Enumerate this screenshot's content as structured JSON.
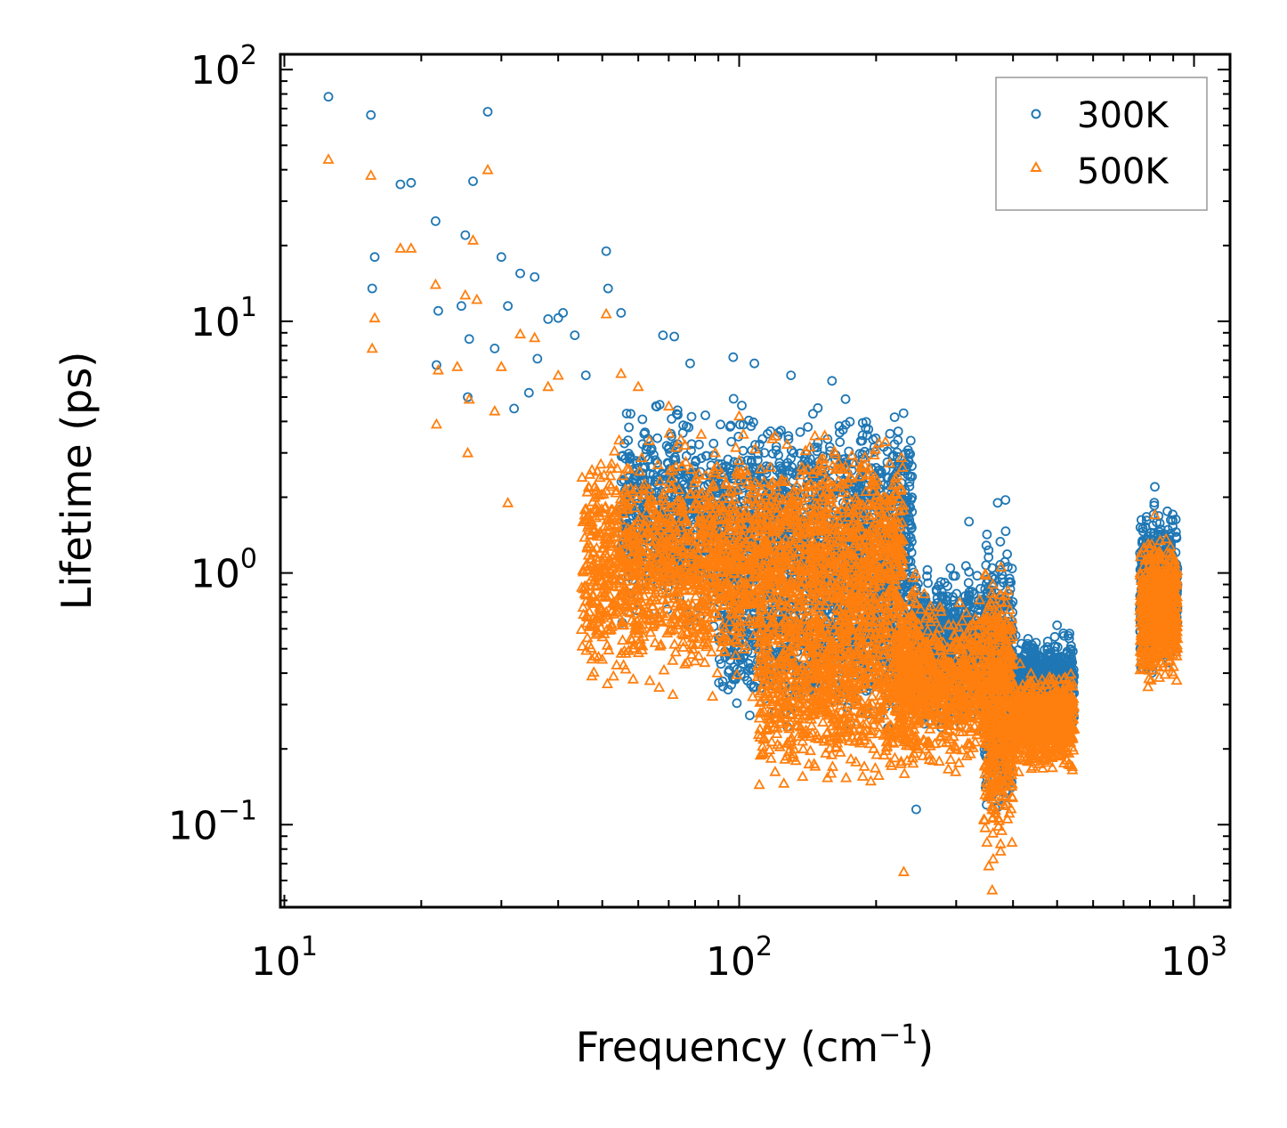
{
  "chart_data": {
    "type": "scatter",
    "title": "",
    "xlabel": "Frequency (cm",
    "xlabel_exponent": "−1",
    "xlabel_suffix": ")",
    "ylabel": "Lifetime (ps)",
    "xscale": "log",
    "yscale": "log",
    "xlim": [
      9.8,
      1200
    ],
    "ylim": [
      0.047,
      115
    ],
    "xticks": [
      {
        "base": "10",
        "exp": "1"
      },
      {
        "base": "10",
        "exp": "2"
      },
      {
        "base": "10",
        "exp": "3"
      }
    ],
    "yticks": [
      {
        "base": "10",
        "exp": "−1"
      },
      {
        "base": "10",
        "exp": "0"
      },
      {
        "base": "10",
        "exp": "1"
      },
      {
        "base": "10",
        "exp": "2"
      }
    ],
    "legend_position": "top-right",
    "series": [
      {
        "name": "300K",
        "marker": "circle-open",
        "color": "#1f77b4",
        "sample_points": [
          [
            12.5,
            78
          ],
          [
            15.5,
            66
          ],
          [
            15.8,
            18
          ],
          [
            15.6,
            13.5
          ],
          [
            18.0,
            35
          ],
          [
            19.0,
            35.5
          ],
          [
            21.5,
            25
          ],
          [
            21.8,
            11
          ],
          [
            21.6,
            6.7
          ],
          [
            25.0,
            22
          ],
          [
            24.5,
            11.5
          ],
          [
            25.5,
            8.5
          ],
          [
            26.0,
            36
          ],
          [
            28.0,
            68
          ],
          [
            29.0,
            7.8
          ],
          [
            30.0,
            18
          ],
          [
            31.0,
            11.5
          ],
          [
            33.0,
            15.5
          ],
          [
            35.5,
            15
          ],
          [
            25.3,
            5.0
          ],
          [
            32.0,
            4.5
          ],
          [
            34.5,
            5.2
          ],
          [
            36.0,
            7.1
          ],
          [
            38.0,
            10.2
          ],
          [
            40.0,
            10.3
          ],
          [
            41.0,
            10.8
          ],
          [
            43.5,
            8.8
          ],
          [
            46.0,
            6.1
          ],
          [
            51.0,
            19
          ],
          [
            51.5,
            13.5
          ],
          [
            55.0,
            10.8
          ],
          [
            68.0,
            8.8
          ],
          [
            72.0,
            8.7
          ],
          [
            78.0,
            6.8
          ],
          [
            97.0,
            7.2
          ],
          [
            108.0,
            6.8
          ],
          [
            130.0,
            6.1
          ],
          [
            160.0,
            5.8
          ],
          [
            200.0,
            2.2
          ],
          [
            320.0,
            1.6
          ],
          [
            370.0,
            1.9
          ],
          [
            385.0,
            1.95
          ],
          [
            500.0,
            0.62
          ],
          [
            820.0,
            2.2
          ],
          [
            860.0,
            1.4
          ],
          [
            920.0,
            0.9
          ],
          [
            245.0,
            0.115
          ],
          [
            350.0,
            0.12
          ]
        ]
      },
      {
        "name": "500K",
        "marker": "triangle-open",
        "color": "#ff7f0e",
        "sample_points": [
          [
            12.5,
            44
          ],
          [
            15.5,
            38
          ],
          [
            15.8,
            10.3
          ],
          [
            15.6,
            7.8
          ],
          [
            18.0,
            19.5
          ],
          [
            19.0,
            19.5
          ],
          [
            21.5,
            14
          ],
          [
            21.8,
            6.4
          ],
          [
            21.6,
            3.9
          ],
          [
            25.0,
            12.7
          ],
          [
            24.0,
            6.6
          ],
          [
            25.5,
            4.9
          ],
          [
            26.0,
            21
          ],
          [
            28.0,
            40
          ],
          [
            29.0,
            4.4
          ],
          [
            26.5,
            12.2
          ],
          [
            30.0,
            6.6
          ],
          [
            31.0,
            1.9
          ],
          [
            25.3,
            3.0
          ],
          [
            33.0,
            8.9
          ],
          [
            35.5,
            8.6
          ],
          [
            38.0,
            5.5
          ],
          [
            40.0,
            6.1
          ],
          [
            48.0,
            1.5
          ],
          [
            51.0,
            10.7
          ],
          [
            55.0,
            6.2
          ],
          [
            60.0,
            5.5
          ],
          [
            70.0,
            4.6
          ],
          [
            100.0,
            4.2
          ],
          [
            120.0,
            3.5
          ],
          [
            165.0,
            2.6
          ],
          [
            200.0,
            1.6
          ],
          [
            230.0,
            0.065
          ],
          [
            360.0,
            0.055
          ],
          [
            820.0,
            1.7
          ],
          [
            900.0,
            0.6
          ],
          [
            540.0,
            0.17
          ],
          [
            470.0,
            0.25
          ]
        ]
      }
    ],
    "regions": [
      {
        "series": "300K",
        "clusters": [
          {
            "xmin": 55,
            "xmax": 240,
            "ymin": 0.5,
            "ymax": 5.5,
            "n": 1700
          },
          {
            "xmin": 90,
            "xmax": 260,
            "ymin": 0.22,
            "ymax": 1.5,
            "n": 900
          },
          {
            "xmin": 240,
            "xmax": 350,
            "ymin": 0.2,
            "ymax": 1.2,
            "n": 700
          },
          {
            "xmin": 345,
            "xmax": 400,
            "ymin": 0.09,
            "ymax": 1.9,
            "n": 500
          },
          {
            "xmin": 400,
            "xmax": 545,
            "ymin": 0.22,
            "ymax": 0.62,
            "n": 700
          },
          {
            "xmin": 760,
            "xmax": 920,
            "ymin": 0.35,
            "ymax": 2.1,
            "n": 650
          }
        ]
      },
      {
        "series": "500K",
        "clusters": [
          {
            "xmin": 45,
            "xmax": 230,
            "ymin": 0.3,
            "ymax": 4.2,
            "n": 2300
          },
          {
            "xmin": 110,
            "xmax": 250,
            "ymin": 0.12,
            "ymax": 1.1,
            "n": 900
          },
          {
            "xmin": 220,
            "xmax": 350,
            "ymin": 0.15,
            "ymax": 0.9,
            "n": 700
          },
          {
            "xmin": 345,
            "xmax": 400,
            "ymin": 0.06,
            "ymax": 1.3,
            "n": 500
          },
          {
            "xmin": 400,
            "xmax": 545,
            "ymin": 0.15,
            "ymax": 0.45,
            "n": 700
          },
          {
            "xmin": 760,
            "xmax": 920,
            "ymin": 0.33,
            "ymax": 1.6,
            "n": 650
          }
        ]
      }
    ]
  }
}
